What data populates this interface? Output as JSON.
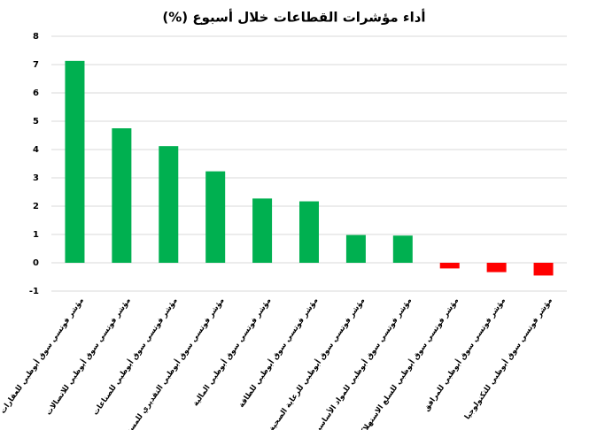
{
  "chart_data": {
    "type": "bar",
    "title": "أداء مؤشرات القطاعات خلال أسبوع (%)",
    "categories": [
      "مؤشر فوتسي سوق أبوظبي للعقارات",
      "مؤشر فوتسي سوق أبوظبي للاتصالات",
      "مؤشر فوتسي سوق أبوظبي للصناعات",
      "مؤشر فوتسي سوق أبوظبي التقديري للمستهلك",
      "مؤشر فوتسي سوق أبوظبي المالية",
      "مؤشر فوتسي سوق أبوظبي للطاقة",
      "مؤشر فوتسي سوق أبوظبي للرعاية الصحية",
      "مؤشر فوتسي سوق أبوظبي للمواد الأساسية",
      "مؤشر فوتسي سوق أبوظبي للسلع الاستهلاكية",
      "مؤشر فوتسي سوق أبوظبي للمرافق",
      "مؤشر فوتسي سوق أبوظبي للتكنولوجيا"
    ],
    "values": [
      7.13,
      4.75,
      4.12,
      3.23,
      2.27,
      2.17,
      0.98,
      0.96,
      -0.2,
      -0.33,
      -0.45
    ],
    "colors": [
      "#00b050",
      "#00b050",
      "#00b050",
      "#00b050",
      "#00b050",
      "#00b050",
      "#00b050",
      "#00b050",
      "#ff0000",
      "#ff0000",
      "#ff0000"
    ],
    "ylim": [
      -1,
      8
    ],
    "yticks": [
      -1,
      0,
      1,
      2,
      3,
      4,
      5,
      6,
      7,
      8
    ],
    "grid": true
  }
}
